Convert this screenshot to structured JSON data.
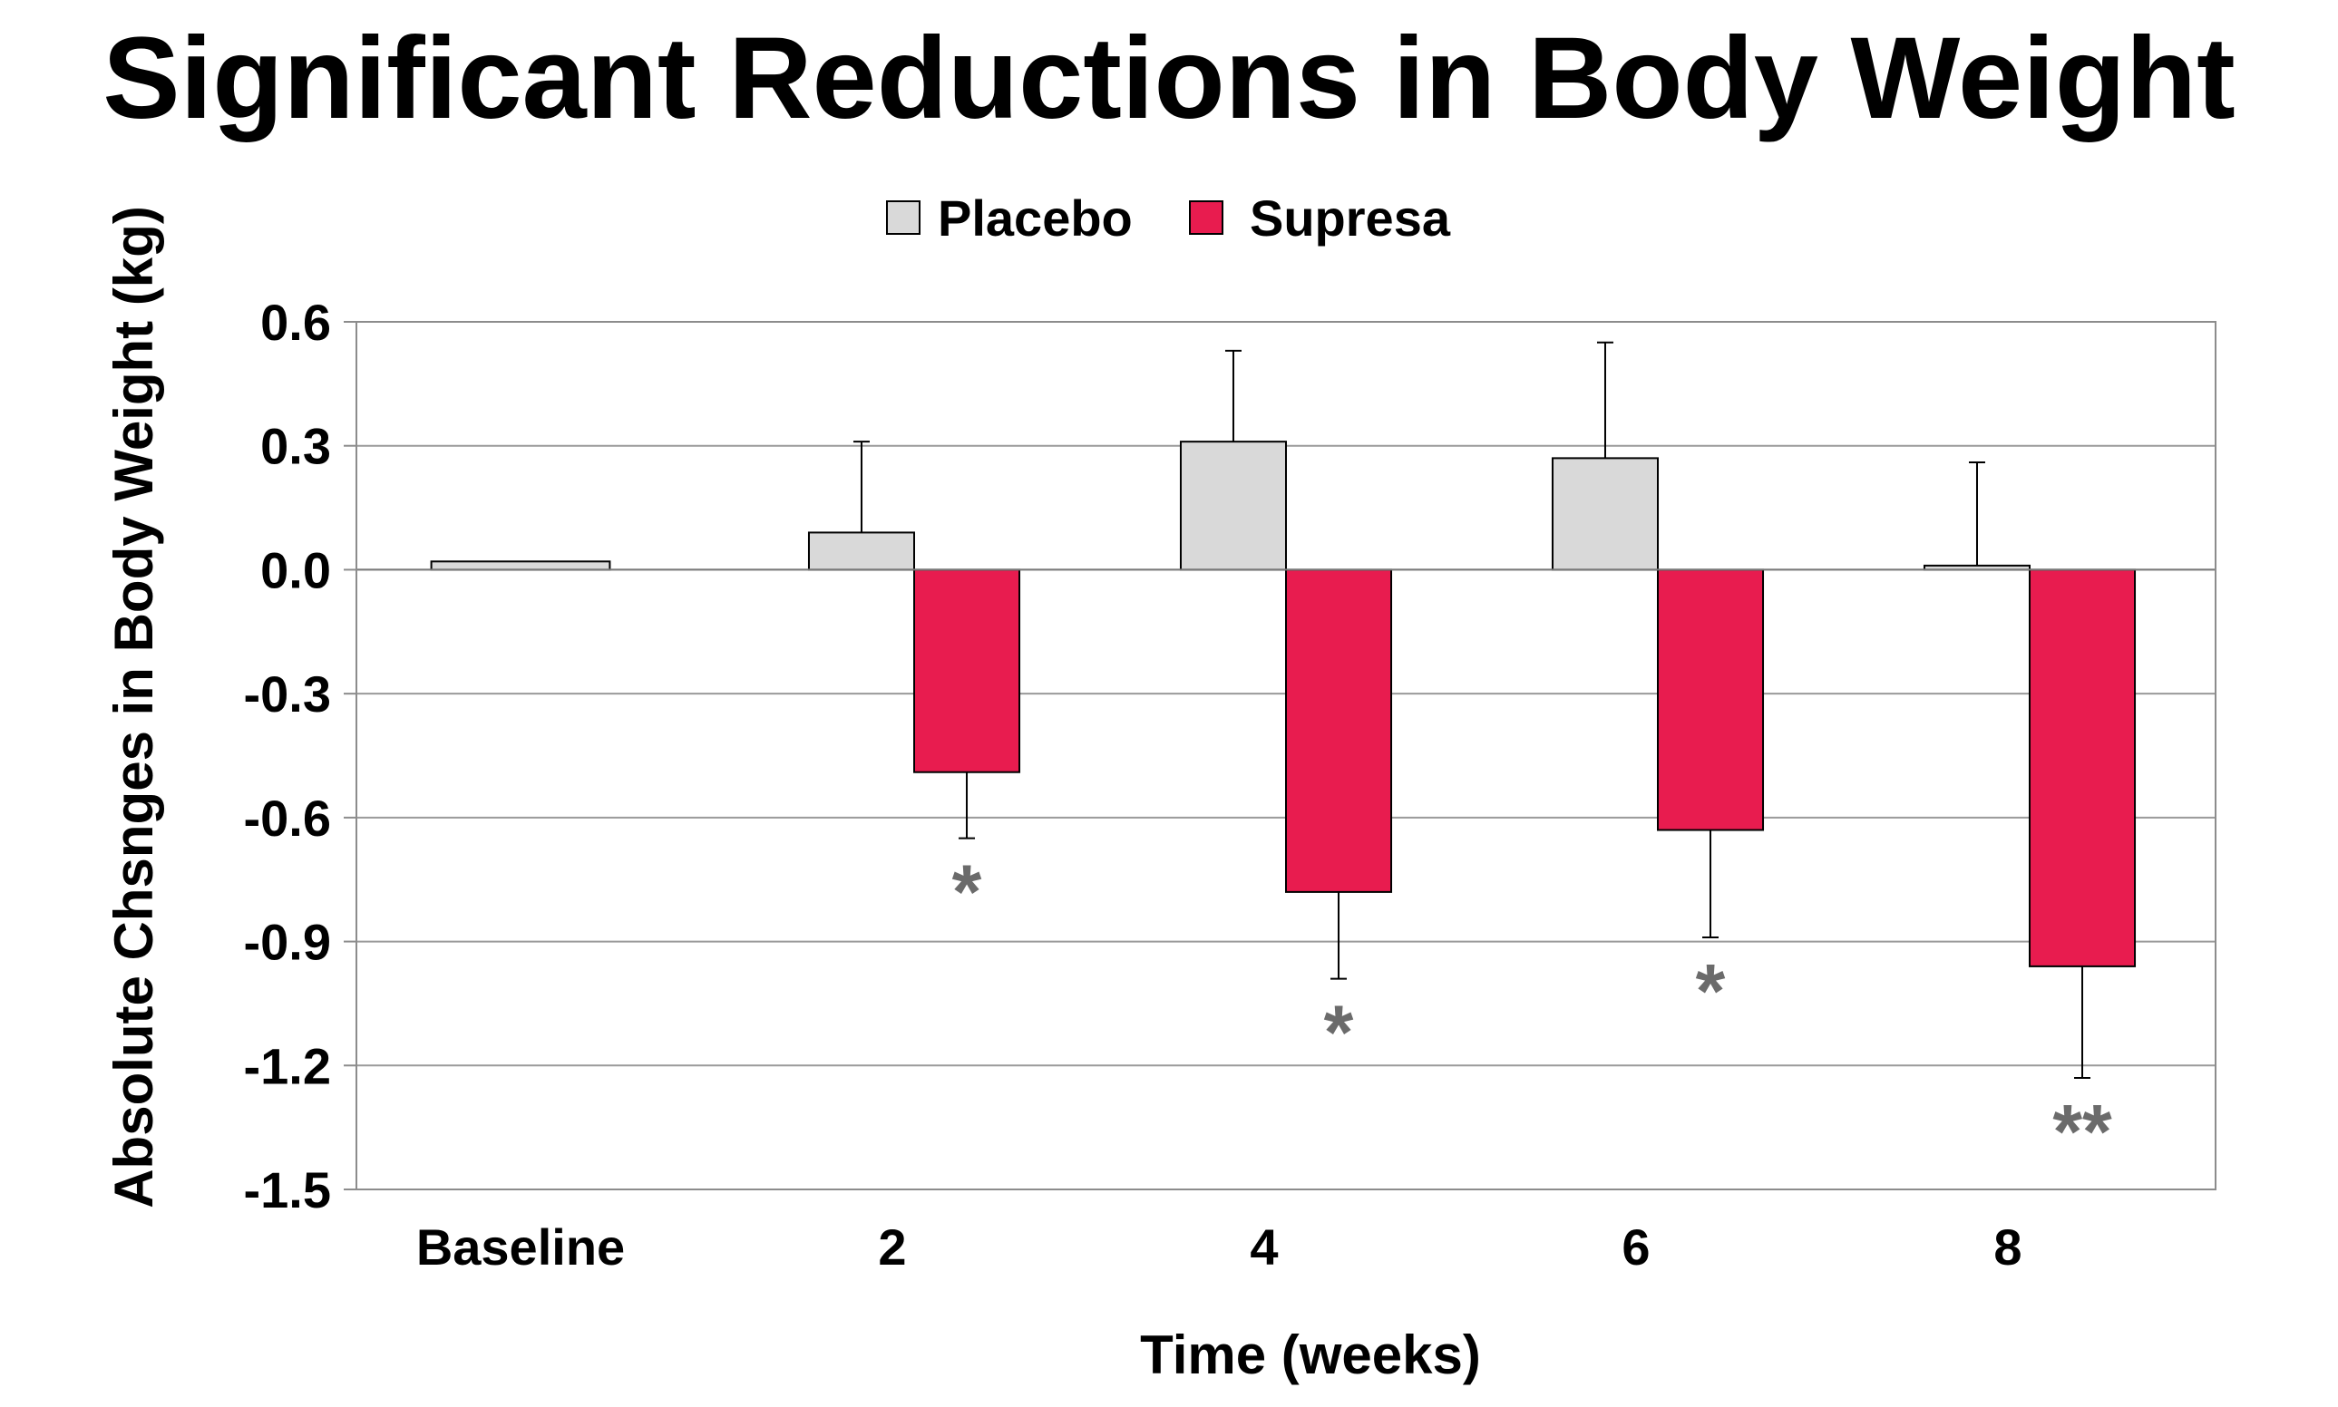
{
  "chart_data": {
    "type": "bar",
    "title": "Significant Reductions in Body Weight",
    "xlabel": "Time (weeks)",
    "ylabel": "Absolute Chsnges in Body Weight (kg)",
    "categories": [
      "Baseline",
      "2",
      "4",
      "6",
      "8"
    ],
    "ylim": [
      -1.5,
      0.6
    ],
    "yticks": [
      "0.6",
      "0.3",
      "0.0",
      "-0.3",
      "-0.6",
      "-0.9",
      "-1.2",
      "-1.5"
    ],
    "grid": true,
    "legend_position": "top-center",
    "series": [
      {
        "name": "Placebo",
        "color": "#d9d9d9",
        "values": [
          0.02,
          0.09,
          0.31,
          0.27,
          0.01
        ],
        "error_upper": [
          null,
          0.31,
          0.53,
          0.55,
          0.26
        ]
      },
      {
        "name": "Supresa",
        "color": "#e81c4f",
        "values": [
          null,
          -0.49,
          -0.78,
          -0.63,
          -0.96
        ],
        "error_lower": [
          null,
          -0.65,
          -0.99,
          -0.89,
          -1.23
        ],
        "significance": [
          "",
          "*",
          "*",
          "*",
          "**"
        ]
      }
    ]
  }
}
